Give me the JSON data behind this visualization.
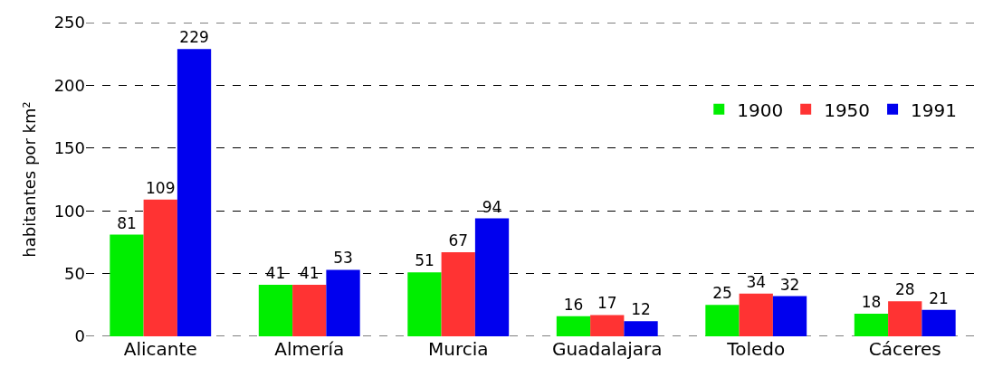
{
  "chart_data": {
    "type": "bar",
    "ylabel": "habitantes por km²",
    "categories": [
      "Alicante",
      "Almería",
      "Murcia",
      "Guadalajara",
      "Toledo",
      "Cáceres"
    ],
    "series": [
      {
        "name": "1900",
        "color": "#00ee00",
        "values": [
          81,
          41,
          51,
          16,
          25,
          18
        ]
      },
      {
        "name": "1950",
        "color": "#ff3333",
        "values": [
          109,
          41,
          67,
          17,
          34,
          28
        ]
      },
      {
        "name": "1991",
        "color": "#0000ee",
        "values": [
          229,
          53,
          94,
          12,
          32,
          21
        ]
      }
    ],
    "ylim": [
      0,
      250
    ],
    "yticks": [
      0,
      50,
      100,
      150,
      200,
      250
    ],
    "grid": "y",
    "legend": "top right",
    "data_labels": true
  }
}
